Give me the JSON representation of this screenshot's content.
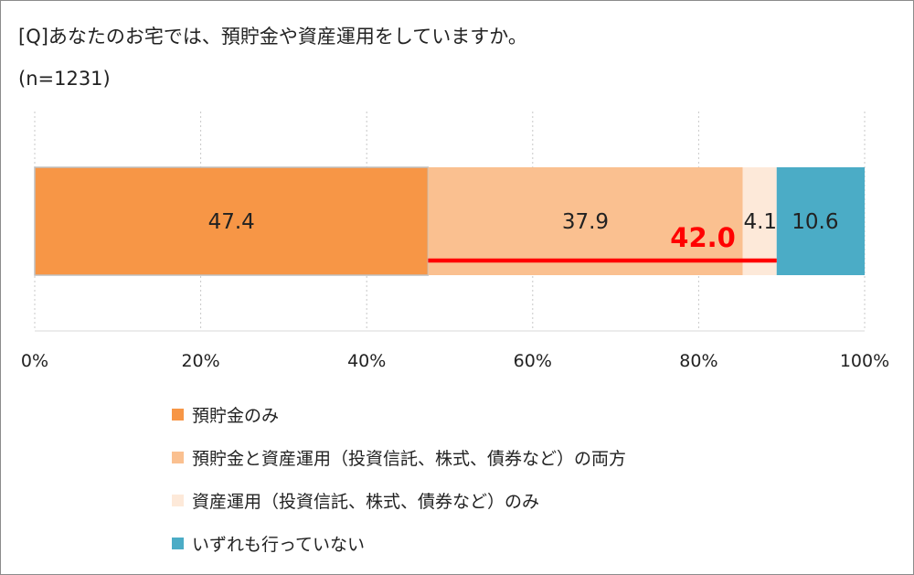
{
  "title": "[Q]あなたのお宅では、預貯金や資産運用をしていますか。",
  "subtitle": "(n=1231)",
  "colors": {
    "deposit_only": "#f79646",
    "both": "#fac090",
    "investment_only": "#fde9d9",
    "none": "#4bacc6",
    "highlight": "#ff0000"
  },
  "chart_data": {
    "type": "bar",
    "orientation": "horizontal",
    "stacked": true,
    "title": "[Q]あなたのお宅では、預貯金や資産運用をしていますか。",
    "subtitle": "(n=1231)",
    "categories": [
      ""
    ],
    "series": [
      {
        "name": "預貯金のみ",
        "values": [
          47.4
        ],
        "color": "#f79646",
        "label": "47.4"
      },
      {
        "name": "預貯金と資産運用（投資信託、株式、債券など）の両方",
        "values": [
          37.9
        ],
        "color": "#fac090",
        "label": "37.9"
      },
      {
        "name": "資産運用（投資信託、株式、債券など）のみ",
        "values": [
          4.1
        ],
        "color": "#fde9d9",
        "label": "4.1"
      },
      {
        "name": "いずれも行っていない",
        "values": [
          10.6
        ],
        "color": "#4bacc6",
        "label": "10.6"
      }
    ],
    "xlim": [
      0,
      100
    ],
    "x_ticks": [
      "0%",
      "20%",
      "40%",
      "60%",
      "80%",
      "100%"
    ],
    "grid": true,
    "legend_position": "bottom",
    "annotation": {
      "text": "42.0",
      "value": 42.0,
      "span": [
        47.4,
        89.4
      ],
      "color": "#ff0000"
    }
  }
}
